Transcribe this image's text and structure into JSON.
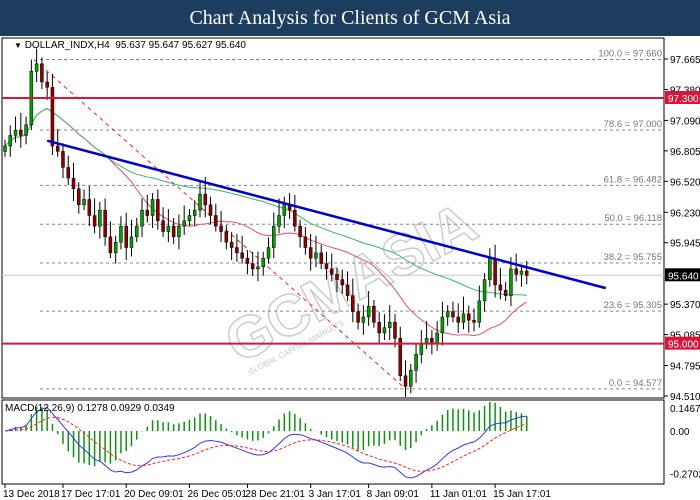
{
  "header": {
    "title": "Chart Analysis for Clients of GCM Asia"
  },
  "watermark": {
    "text": "GCMASIA",
    "subtext": "GLOBAL CAPITAL MARKETS"
  },
  "chart_data": {
    "type": "candlestick",
    "symbol_info": "DOLLAR_INDX,H4  95.637 95.647 95.627 95.640",
    "price_ticks": [
      "97.665",
      "97.380",
      "97.090",
      "96.805",
      "96.520",
      "96.230",
      "95.945",
      "95.370",
      "95.085",
      "94.795",
      "94.510"
    ],
    "ylim": [
      94.51,
      97.665
    ],
    "current_price": {
      "label": "95.640",
      "value": 95.64,
      "color": "#000000"
    },
    "horizontal_levels": [
      {
        "label": "97.300",
        "value": 97.3,
        "color": "#dc143c"
      },
      {
        "label": "95.000",
        "value": 95.0,
        "color": "#dc143c"
      }
    ],
    "fib_levels": [
      {
        "label": "100.0 = 97.660",
        "value": 97.66
      },
      {
        "label": "78.6 = 97.000",
        "value": 97.0
      },
      {
        "label": "61.8 = 96.482",
        "value": 96.482
      },
      {
        "label": "50.0 = 96.118",
        "value": 96.118
      },
      {
        "label": "38.2 = 95.755",
        "value": 95.755
      },
      {
        "label": "23.6 = 95.305",
        "value": 95.305
      },
      {
        "label": "0.0 = 94.577",
        "value": 94.577
      }
    ],
    "trendline": {
      "from": [
        8,
        96.9
      ],
      "to": [
        114,
        95.52
      ],
      "color": "#0000cd"
    },
    "time_ticks": [
      {
        "label": "13 Dec 2018",
        "index": 0
      },
      {
        "label": "17 Dec 17:01",
        "index": 11
      },
      {
        "label": "20 Dec 09:01",
        "index": 23
      },
      {
        "label": "26 Dec 05:01",
        "index": 35
      },
      {
        "label": "28 Dec 21:01",
        "index": 46
      },
      {
        "label": "3 Jan 17:01",
        "index": 58
      },
      {
        "label": "8 Jan 09:01",
        "index": 69
      },
      {
        "label": "11 Jan 01:01",
        "index": 81
      },
      {
        "label": "15 Jan 17:01",
        "index": 93
      }
    ],
    "closes": [
      96.85,
      96.95,
      97.0,
      96.95,
      97.05,
      97.55,
      97.62,
      97.45,
      97.4,
      96.85,
      96.8,
      96.65,
      96.55,
      96.45,
      96.3,
      96.35,
      96.2,
      96.1,
      96.25,
      96.0,
      95.85,
      95.95,
      96.1,
      95.9,
      96.0,
      96.1,
      96.25,
      96.2,
      96.35,
      96.15,
      96.05,
      96.1,
      96.0,
      96.1,
      96.15,
      96.2,
      96.25,
      96.4,
      96.3,
      96.2,
      96.1,
      96.05,
      95.95,
      95.9,
      95.85,
      95.8,
      95.75,
      95.7,
      95.72,
      95.8,
      95.9,
      96.1,
      96.2,
      96.3,
      96.25,
      96.1,
      96.0,
      95.9,
      95.8,
      95.85,
      95.75,
      95.7,
      95.65,
      95.6,
      95.55,
      95.45,
      95.3,
      95.2,
      95.25,
      95.35,
      95.2,
      95.1,
      95.15,
      95.2,
      95.05,
      94.7,
      94.6,
      94.75,
      94.9,
      95.0,
      95.05,
      95.0,
      95.1,
      95.25,
      95.3,
      95.25,
      95.2,
      95.28,
      95.22,
      95.2,
      95.4,
      95.6,
      95.8,
      95.55,
      95.5,
      95.45,
      95.7,
      95.65,
      95.68,
      95.64
    ],
    "moving_averages": [
      {
        "period": 20,
        "color": "#e8506a"
      },
      {
        "period": 50,
        "color": "#3cb371"
      }
    ],
    "macd": {
      "label": "MACD(12,26,9) 0.1278 0.0929 0.0349",
      "ticks": [
        "0.1467",
        "0.00",
        "-0.2702"
      ],
      "ylim": [
        -0.2702,
        0.1467
      ],
      "line_color": "#3333ff",
      "signal_color": "#ff2020",
      "hist_color": "#109010"
    },
    "colors": {
      "bull": "#00a000",
      "bear": "#8b0000"
    }
  }
}
